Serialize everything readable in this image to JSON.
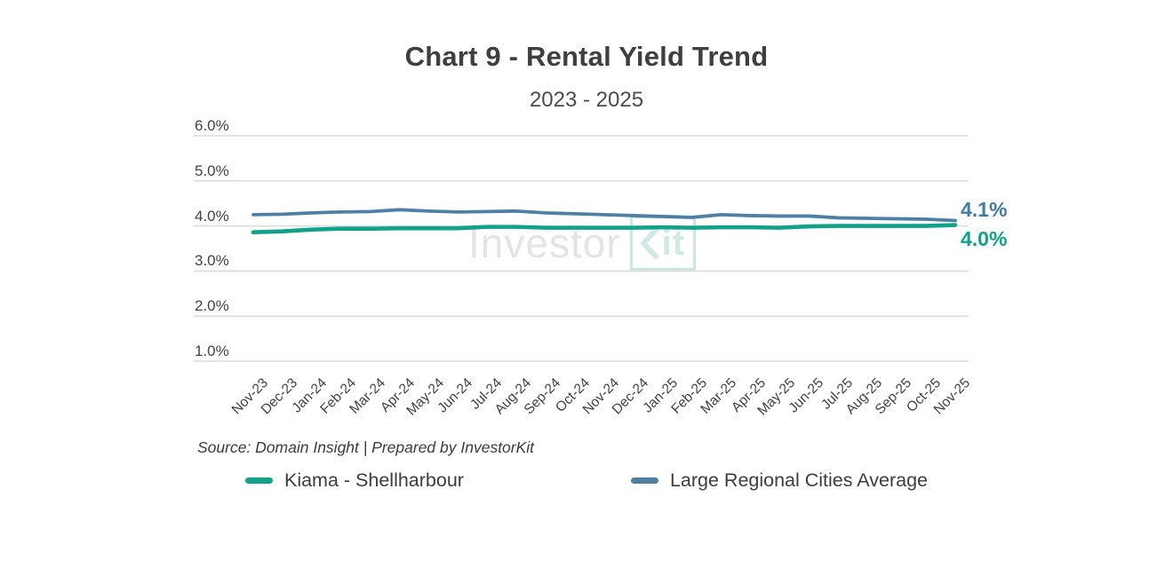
{
  "header": {
    "title": "Chart 9 - Rental Yield Trend",
    "subtitle": "2023 - 2025"
  },
  "watermark": {
    "text_gray": "Investor",
    "text_teal": "it",
    "icon": "chevron-k-icon"
  },
  "source_note": "Source: Domain Insight | Prepared by InvestorKit",
  "colors": {
    "kiama": "#12a189",
    "regional": "#4e80a6",
    "grid": "#dcdcdc",
    "text": "#424242",
    "end_label_regional": "#417ba8",
    "end_label_kiama": "#0ea287"
  },
  "legend": [
    {
      "label": "Kiama - Shellharbour",
      "color": "#12a189"
    },
    {
      "label": "Large Regional Cities Average",
      "color": "#4e80a6"
    }
  ],
  "chart_data": {
    "type": "line",
    "title": "Chart 9 - Rental Yield Trend",
    "subtitle": "2023 - 2025",
    "x": [
      "Nov-23",
      "Dec-23",
      "Jan-24",
      "Feb-24",
      "Mar-24",
      "Apr-24",
      "May-24",
      "Jun-24",
      "Jul-24",
      "Aug-24",
      "Sep-24",
      "Oct-24",
      "Nov-24",
      "Dec-24",
      "Jan-25",
      "Feb-25",
      "Mar-25",
      "Apr-25",
      "May-25",
      "Jun-25",
      "Jul-25",
      "Aug-25",
      "Sep-25",
      "Oct-25",
      "Nov-25"
    ],
    "series": [
      {
        "name": "Kiama - Shellharbour",
        "color": "#12a189",
        "values": [
          3.86,
          3.88,
          3.92,
          3.94,
          3.94,
          3.95,
          3.95,
          3.95,
          3.98,
          3.98,
          3.96,
          3.96,
          3.96,
          3.96,
          3.97,
          3.96,
          3.97,
          3.97,
          3.96,
          3.99,
          4.0,
          4.0,
          4.0,
          4.0,
          4.02
        ]
      },
      {
        "name": "Large Regional Cities Average",
        "color": "#4e80a6",
        "values": [
          4.25,
          4.26,
          4.29,
          4.31,
          4.32,
          4.36,
          4.33,
          4.31,
          4.32,
          4.33,
          4.29,
          4.27,
          4.25,
          4.23,
          4.21,
          4.19,
          4.25,
          4.23,
          4.22,
          4.22,
          4.18,
          4.17,
          4.16,
          4.15,
          4.12
        ]
      }
    ],
    "ytick_values": [
      6,
      5,
      4,
      3,
      2,
      1
    ],
    "ytick_labels": [
      "6.0%",
      "5.0%",
      "4.0%",
      "3.0%",
      "2.0%",
      "1.0%"
    ],
    "ylim": [
      1.0,
      6.0
    ],
    "xlabel": "",
    "ylabel": "",
    "grid": true,
    "legend_position": "bottom",
    "end_labels": {
      "regional": "4.1%",
      "kiama": "4.0%"
    }
  }
}
